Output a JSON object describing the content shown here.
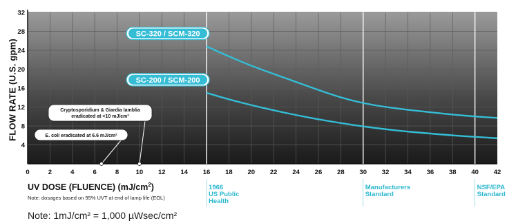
{
  "colors": {
    "series_line": "#35bdd6",
    "label_fill": "#35bdd6",
    "marker_line": "#ffffff",
    "standard_text": "#2ab7ce",
    "plot_bg_top": "#9a9a9a",
    "plot_bg_bottom": "#1c1c1c",
    "grid": "#5a5a5a"
  },
  "chart_data": {
    "type": "line",
    "xlabel": "UV DOSE (FLUENCE) (mJ/cm",
    "xlabel_sup": "2",
    "xlabel_suffix": ")",
    "ylabel": "FLOW RATE (U.S. gpm)",
    "xlim": [
      0,
      42
    ],
    "ylim": [
      0,
      32
    ],
    "x_ticks": [
      "0",
      "2",
      "4",
      "6",
      "8",
      "10",
      "12",
      "14",
      "16",
      "18",
      "20",
      "22",
      "24",
      "26",
      "28",
      "30",
      "32",
      "34",
      "36",
      "38",
      "40",
      "42"
    ],
    "y_ticks": [
      "4",
      "8",
      "12",
      "16",
      "20",
      "24",
      "28",
      "32"
    ],
    "grid": true,
    "series": [
      {
        "name": "SC-320 / SCM-320",
        "points": [
          [
            16,
            24.8
          ],
          [
            18,
            22.7
          ],
          [
            20,
            20.7
          ],
          [
            22,
            19.0
          ],
          [
            24,
            17.3
          ],
          [
            26,
            15.6
          ],
          [
            28,
            14.0
          ],
          [
            30,
            12.8
          ],
          [
            32,
            12.0
          ],
          [
            34,
            11.4
          ],
          [
            36,
            10.9
          ],
          [
            38,
            10.4
          ],
          [
            40,
            10.0
          ],
          [
            42,
            9.7
          ]
        ]
      },
      {
        "name": "SC-200 / SCM-200",
        "points": [
          [
            16,
            15.0
          ],
          [
            18,
            13.6
          ],
          [
            20,
            12.4
          ],
          [
            22,
            11.3
          ],
          [
            24,
            10.3
          ],
          [
            26,
            9.4
          ],
          [
            28,
            8.6
          ],
          [
            30,
            7.9
          ],
          [
            32,
            7.3
          ],
          [
            34,
            6.8
          ],
          [
            36,
            6.4
          ],
          [
            38,
            6.0
          ],
          [
            40,
            5.7
          ],
          [
            42,
            5.4
          ]
        ]
      }
    ],
    "annotations": [
      {
        "text": "Cryptosporidium & Giardia lamblia\neradicated at <10 mJ/cm²",
        "x": 10
      },
      {
        "text": "E. coli eradicated at 6.6 mJ/cm²",
        "x": 6.6
      }
    ],
    "reference_lines": [
      {
        "x": 16,
        "label": "1966\nUS Public\nHealth"
      },
      {
        "x": 30,
        "label": "Manufacturers\nStandard"
      },
      {
        "x": 40,
        "label": "NSF/EPA\nStandard"
      }
    ]
  },
  "labels": {
    "xnote": "Note: dosages based on 95% UVT at end of lamp life (EOL)",
    "unit_note": "Note: 1mJ/cm² = 1,000 µWsec/cm²"
  }
}
